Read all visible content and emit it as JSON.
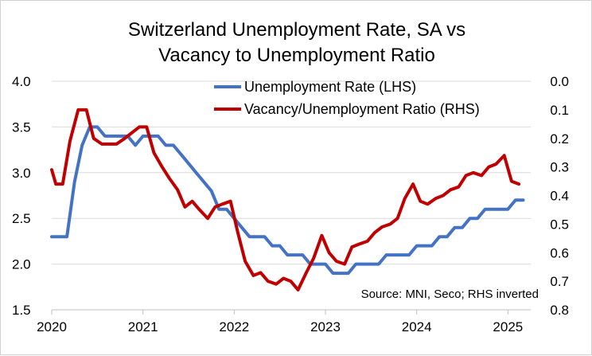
{
  "chart_data": {
    "type": "line",
    "title": [
      "Switzerland Unemployment Rate, SA vs",
      "Vacancy to Unemployment Ratio"
    ],
    "source": "Source: MNI, Seco; RHS inverted",
    "x_tick_labels": [
      "2020",
      "2021",
      "2022",
      "2023",
      "2024",
      "2025"
    ],
    "y_left_tick_labels": [
      "4.0",
      "3.5",
      "3.0",
      "2.5",
      "2.0",
      "1.5"
    ],
    "y_right_tick_labels": [
      "0.0",
      "0.1",
      "0.2",
      "0.3",
      "0.4",
      "0.5",
      "0.6",
      "0.7",
      "0.8"
    ],
    "ylim_left": [
      1.5,
      4.0
    ],
    "ylim_right_inverted": [
      0.0,
      0.8
    ],
    "xlim": [
      2020.0,
      2025.25
    ],
    "colors": {
      "unemployment": "#4472c4",
      "ratio": "#c00000",
      "grid": "#d9d9d9"
    },
    "series": [
      {
        "name": "Unemployment Rate (LHS)",
        "axis": "left",
        "x": [
          2020.0,
          2020.083,
          2020.167,
          2020.25,
          2020.333,
          2020.417,
          2020.5,
          2020.583,
          2020.667,
          2020.75,
          2020.833,
          2020.917,
          2021.0,
          2021.083,
          2021.167,
          2021.25,
          2021.333,
          2021.417,
          2021.5,
          2021.583,
          2021.667,
          2021.75,
          2021.833,
          2021.917,
          2022.0,
          2022.083,
          2022.167,
          2022.25,
          2022.333,
          2022.417,
          2022.5,
          2022.583,
          2022.667,
          2022.75,
          2022.833,
          2022.917,
          2023.0,
          2023.083,
          2023.167,
          2023.25,
          2023.333,
          2023.417,
          2023.5,
          2023.583,
          2023.667,
          2023.75,
          2023.833,
          2023.917,
          2024.0,
          2024.083,
          2024.167,
          2024.25,
          2024.333,
          2024.417,
          2024.5,
          2024.583,
          2024.667,
          2024.75,
          2024.833,
          2024.917,
          2025.0,
          2025.083,
          2025.167
        ],
        "values": [
          2.3,
          2.3,
          2.3,
          2.9,
          3.3,
          3.5,
          3.5,
          3.4,
          3.4,
          3.4,
          3.4,
          3.3,
          3.4,
          3.4,
          3.4,
          3.3,
          3.3,
          3.2,
          3.1,
          3.0,
          2.9,
          2.8,
          2.6,
          2.6,
          2.5,
          2.4,
          2.3,
          2.3,
          2.3,
          2.2,
          2.2,
          2.1,
          2.1,
          2.1,
          2.0,
          2.0,
          2.0,
          1.9,
          1.9,
          1.9,
          2.0,
          2.0,
          2.0,
          2.0,
          2.1,
          2.1,
          2.1,
          2.1,
          2.2,
          2.2,
          2.2,
          2.3,
          2.3,
          2.4,
          2.4,
          2.5,
          2.5,
          2.6,
          2.6,
          2.6,
          2.6,
          2.7,
          2.7
        ]
      },
      {
        "name": "Vacancy/Unemployment Ratio (RHS)",
        "axis": "right",
        "x": [
          2020.0,
          2020.045,
          2020.12,
          2020.2,
          2020.29,
          2020.38,
          2020.46,
          2020.55,
          2020.62,
          2020.71,
          2020.8,
          2020.88,
          2020.96,
          2021.04,
          2021.12,
          2021.21,
          2021.29,
          2021.38,
          2021.46,
          2021.54,
          2021.62,
          2021.71,
          2021.79,
          2021.87,
          2021.96,
          2022.04,
          2022.12,
          2022.21,
          2022.29,
          2022.37,
          2022.46,
          2022.54,
          2022.62,
          2022.7,
          2022.79,
          2022.87,
          2022.96,
          2023.04,
          2023.12,
          2023.21,
          2023.29,
          2023.37,
          2023.46,
          2023.54,
          2023.62,
          2023.71,
          2023.79,
          2023.87,
          2023.96,
          2024.04,
          2024.12,
          2024.21,
          2024.29,
          2024.37,
          2024.46,
          2024.54,
          2024.62,
          2024.71,
          2024.79,
          2024.87,
          2024.96,
          2025.04,
          2025.12
        ],
        "values": [
          0.31,
          0.36,
          0.36,
          0.21,
          0.1,
          0.1,
          0.2,
          0.22,
          0.22,
          0.22,
          0.2,
          0.18,
          0.16,
          0.16,
          0.25,
          0.3,
          0.34,
          0.38,
          0.44,
          0.42,
          0.45,
          0.48,
          0.44,
          0.43,
          0.42,
          0.53,
          0.63,
          0.68,
          0.67,
          0.7,
          0.71,
          0.69,
          0.7,
          0.73,
          0.67,
          0.62,
          0.54,
          0.6,
          0.63,
          0.64,
          0.58,
          0.57,
          0.56,
          0.53,
          0.51,
          0.5,
          0.48,
          0.41,
          0.36,
          0.42,
          0.43,
          0.41,
          0.4,
          0.38,
          0.37,
          0.33,
          0.32,
          0.33,
          0.3,
          0.29,
          0.26,
          0.35,
          0.36
        ]
      }
    ]
  }
}
